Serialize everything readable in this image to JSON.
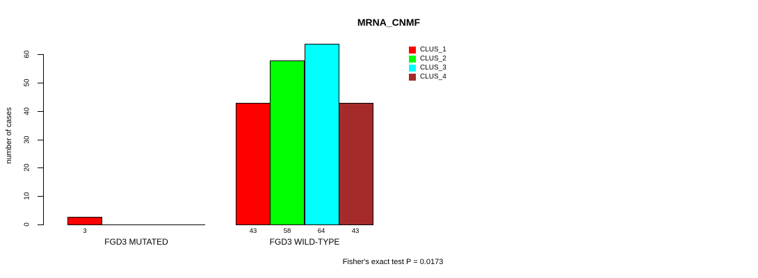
{
  "title": "MRNA_CNMF",
  "footer": "Fisher's exact test P = 0.0173",
  "chart_data": {
    "type": "bar",
    "title": "MRNA_CNMF",
    "xlabel": "",
    "ylabel": "number of cases",
    "ylim": [
      0,
      60
    ],
    "yticks": [
      0,
      10,
      20,
      30,
      40,
      50,
      60
    ],
    "grid": false,
    "legend_position": "top-right",
    "categories": [
      "FGD3 MUTATED",
      "FGD3 WILD-TYPE"
    ],
    "series": [
      {
        "name": "CLUS_1",
        "color": "#FF0000",
        "values": [
          3,
          43
        ]
      },
      {
        "name": "CLUS_2",
        "color": "#00FF00",
        "values": [
          0,
          58
        ]
      },
      {
        "name": "CLUS_3",
        "color": "#00FFFF",
        "values": [
          0,
          64
        ]
      },
      {
        "name": "CLUS_4",
        "color": "#A52A2A",
        "values": [
          0,
          43
        ]
      }
    ],
    "bar_value_labels": [
      [
        "3",
        "",
        "",
        ""
      ],
      [
        "43",
        "58",
        "64",
        "43"
      ]
    ],
    "annotation": "Fisher's exact test P = 0.0173"
  }
}
